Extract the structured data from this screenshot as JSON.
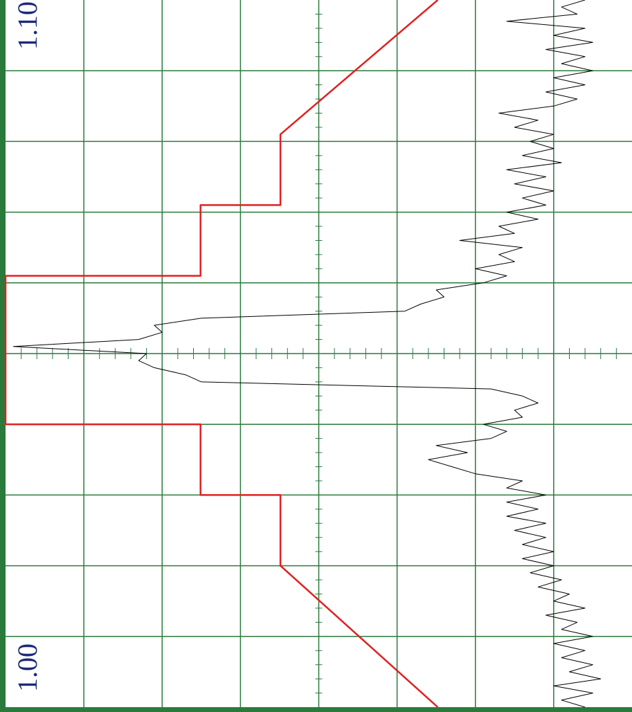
{
  "chart_data": {
    "type": "line",
    "x_axis": "vertical",
    "xlim": [
      1.0,
      1.1
    ],
    "xticks": [
      {
        "value": 1.0,
        "label": "1.00"
      },
      {
        "value": 1.1,
        "label": "1.10"
      }
    ],
    "xgrid": [
      1.01,
      1.02,
      1.03,
      1.04,
      1.05,
      1.06,
      1.07,
      1.08,
      1.09
    ],
    "ylim": [
      0,
      8
    ],
    "ygrid": [
      1,
      2,
      3,
      4,
      5,
      6,
      7
    ],
    "grid": true,
    "grid_color": "#2a7a3c",
    "series": [
      {
        "color": "#e02020",
        "x": [
          1.1,
          1.081,
          1.071,
          1.071,
          1.061,
          1.061,
          1.04,
          1.04,
          1.03,
          1.03,
          1.02,
          1.0
        ],
        "values": [
          5.52,
          3.51,
          3.51,
          2.49,
          2.49,
          0,
          0,
          2.49,
          2.49,
          3.51,
          3.51,
          5.52
        ]
      },
      {
        "color": "#000000",
        "x": [
          1.0,
          1.001,
          1.002,
          1.003,
          1.004,
          1.005,
          1.006,
          1.007,
          1.008,
          1.009,
          1.01,
          1.011,
          1.012,
          1.013,
          1.014,
          1.015,
          1.016,
          1.017,
          1.018,
          1.019,
          1.02,
          1.021,
          1.022,
          1.023,
          1.024,
          1.025,
          1.026,
          1.027,
          1.028,
          1.029,
          1.03,
          1.031,
          1.032,
          1.033,
          1.034,
          1.035,
          1.036,
          1.037,
          1.038,
          1.039,
          1.04,
          1.041,
          1.042,
          1.043,
          1.044,
          1.045,
          1.046,
          1.047,
          1.048,
          1.049,
          1.05,
          1.051,
          1.052,
          1.053,
          1.054,
          1.055,
          1.056,
          1.057,
          1.058,
          1.059,
          1.06,
          1.061,
          1.062,
          1.063,
          1.064,
          1.065,
          1.066,
          1.067,
          1.068,
          1.069,
          1.07,
          1.071,
          1.072,
          1.073,
          1.074,
          1.075,
          1.076,
          1.077,
          1.078,
          1.079,
          1.08,
          1.081,
          1.082,
          1.083,
          1.084,
          1.085,
          1.086,
          1.087,
          1.088,
          1.089,
          1.09,
          1.091,
          1.092,
          1.093,
          1.094,
          1.095,
          1.096,
          1.097,
          1.098,
          1.099,
          1.1
        ],
        "values": [
          7.4,
          7.1,
          7.5,
          7.0,
          7.6,
          7.2,
          7.5,
          7.1,
          7.4,
          7.0,
          7.5,
          7.1,
          7.3,
          6.9,
          7.4,
          7.0,
          7.2,
          6.8,
          7.1,
          6.7,
          7.0,
          6.6,
          7.0,
          6.6,
          6.9,
          6.5,
          6.9,
          6.4,
          6.8,
          6.4,
          6.9,
          6.4,
          6.6,
          6.0,
          5.7,
          5.4,
          5.9,
          5.5,
          6.2,
          6.4,
          6.1,
          6.6,
          6.5,
          6.8,
          6.6,
          6.2,
          2.5,
          2.3,
          1.9,
          1.7,
          1.8,
          0.1,
          1.7,
          2.0,
          1.9,
          2.5,
          5.1,
          5.3,
          5.6,
          5.5,
          6.1,
          6.4,
          6.0,
          6.5,
          6.3,
          6.6,
          5.8,
          6.5,
          6.3,
          6.8,
          6.4,
          6.9,
          6.6,
          7.0,
          6.5,
          6.9,
          6.4,
          7.1,
          6.6,
          7.0,
          6.7,
          7.0,
          6.5,
          6.8,
          6.3,
          7.0,
          7.3,
          6.9,
          7.4,
          7.0,
          7.5,
          7.1,
          7.4,
          6.9,
          7.5,
          7.0,
          7.4,
          6.4,
          7.3,
          7.1,
          7.4
        ]
      }
    ]
  }
}
